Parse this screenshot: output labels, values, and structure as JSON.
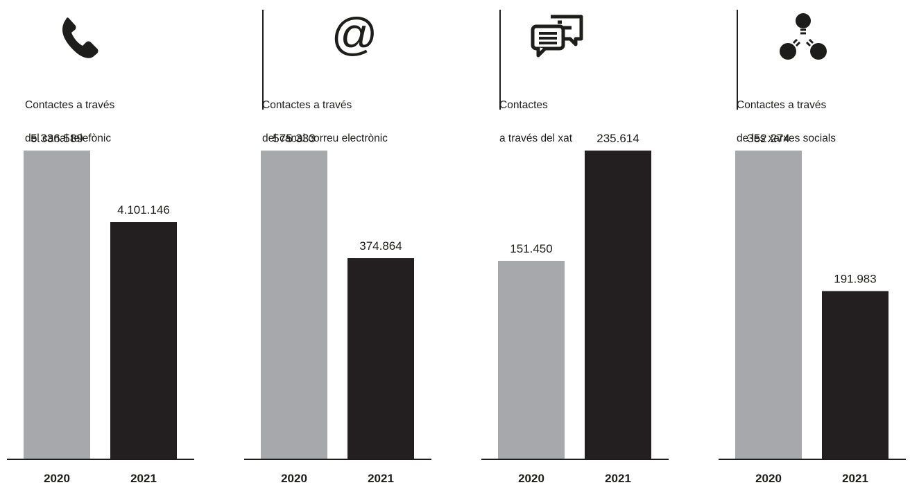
{
  "colors": {
    "y2020": "#a7a8ab",
    "y2021": "#231f20",
    "text": "#1d1d1b"
  },
  "chart_data": [
    {
      "type": "bar",
      "icon": "phone-icon",
      "title_lines": [
        "Contactes a través",
        "del canal telefònic"
      ],
      "categories": [
        "2020",
        "2021"
      ],
      "values": [
        5336589,
        4101146
      ],
      "value_labels": [
        "5.336.589",
        "4.101.146"
      ],
      "ylim": [
        0,
        5336589
      ]
    },
    {
      "type": "bar",
      "icon": "at-sign-icon",
      "title_lines": [
        "Contactes a través",
        "del canal correu electrònic"
      ],
      "categories": [
        "2020",
        "2021"
      ],
      "values": [
        575333,
        374864
      ],
      "value_labels": [
        "575.333",
        "374.864"
      ],
      "ylim": [
        0,
        575333
      ]
    },
    {
      "type": "bar",
      "icon": "chat-bubbles-icon",
      "title_lines": [
        "Contactes",
        "a través del xat"
      ],
      "categories": [
        "2020",
        "2021"
      ],
      "values": [
        151450,
        235614
      ],
      "value_labels": [
        "151.450",
        "235.614"
      ],
      "ylim": [
        0,
        235614
      ]
    },
    {
      "type": "bar",
      "icon": "social-network-icon",
      "title_lines": [
        "Contactes a través",
        "de les xarxes socials"
      ],
      "categories": [
        "2020",
        "2021"
      ],
      "values": [
        352274,
        191983
      ],
      "value_labels": [
        "352.274",
        "191.983"
      ],
      "ylim": [
        0,
        352274
      ]
    }
  ]
}
